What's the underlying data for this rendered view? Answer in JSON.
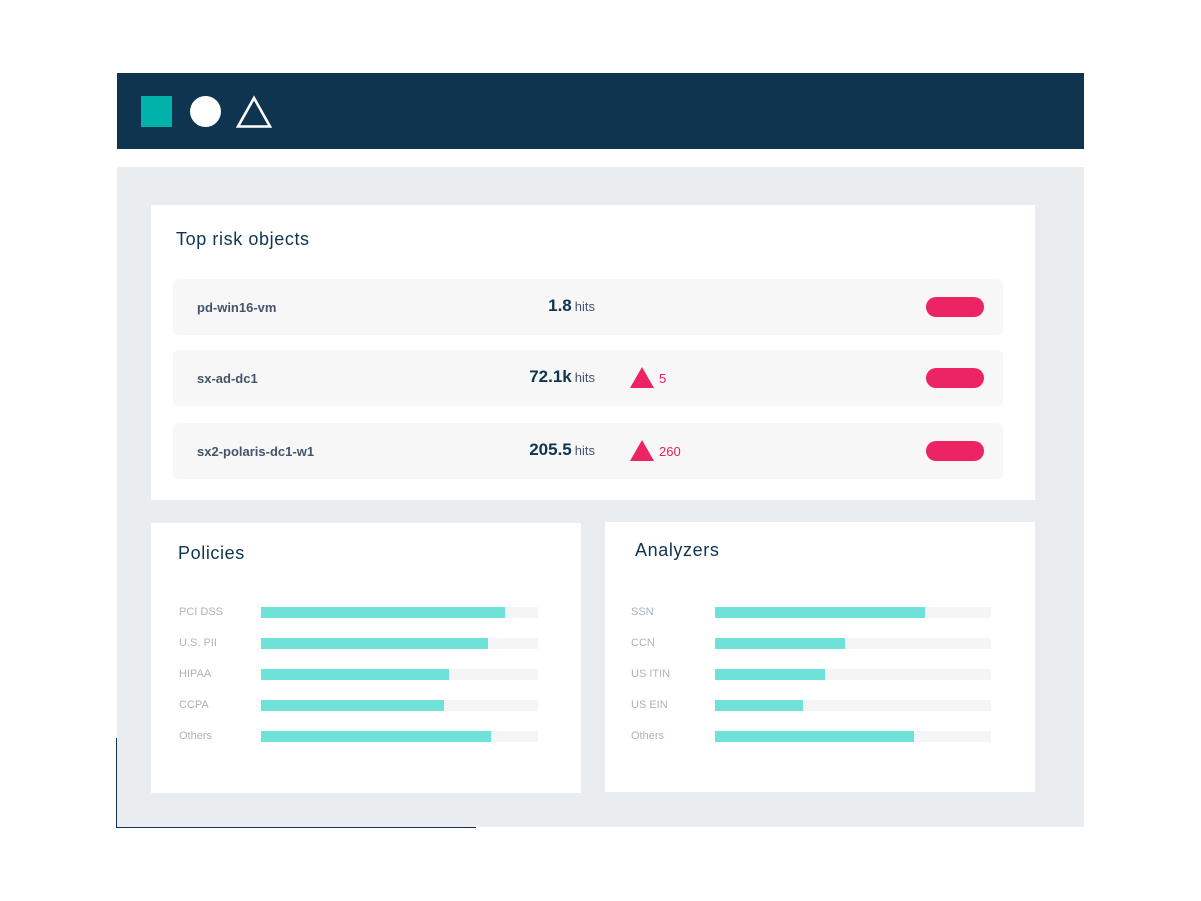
{
  "header": {
    "shapes": [
      "square-icon",
      "circle-icon",
      "triangle-icon"
    ],
    "colors": {
      "bar": "#0e3450",
      "square": "#00b2aa",
      "circle": "#ffffff",
      "triangle_outline": "#ffffff"
    }
  },
  "risk_card": {
    "title": "Top risk objects",
    "rows": [
      {
        "name": "pd-win16-vm",
        "hits": "1.8",
        "hits_label": "hits",
        "alert": ""
      },
      {
        "name": "sx-ad-dc1",
        "hits": "72.1k",
        "hits_label": "hits",
        "alert": "5"
      },
      {
        "name": "sx2-polaris-dc1-w1",
        "hits": "205.5",
        "hits_label": "hits",
        "alert": "260"
      }
    ],
    "colors": {
      "pill": "#ec2464",
      "alert": "#e8205f"
    }
  },
  "policies_card": {
    "title": "Policies",
    "items": [
      {
        "label": "PCI DSS",
        "fraction": 0.88
      },
      {
        "label": "U.S. PII",
        "fraction": 0.82
      },
      {
        "label": "HIPAA",
        "fraction": 0.68
      },
      {
        "label": "CCPA",
        "fraction": 0.66
      },
      {
        "label": "Others",
        "fraction": 0.83
      }
    ]
  },
  "analyzers_card": {
    "title": "Analyzers",
    "items": [
      {
        "label": "SSN",
        "fraction": 0.76
      },
      {
        "label": "CCN",
        "fraction": 0.47
      },
      {
        "label": "US ITIN",
        "fraction": 0.4
      },
      {
        "label": "US EIN",
        "fraction": 0.32
      },
      {
        "label": "Others",
        "fraction": 0.72
      }
    ]
  },
  "colors": {
    "bar_fill": "#6ee2d9",
    "bar_track": "#f4f5f6",
    "panel": "#e9edf0"
  }
}
